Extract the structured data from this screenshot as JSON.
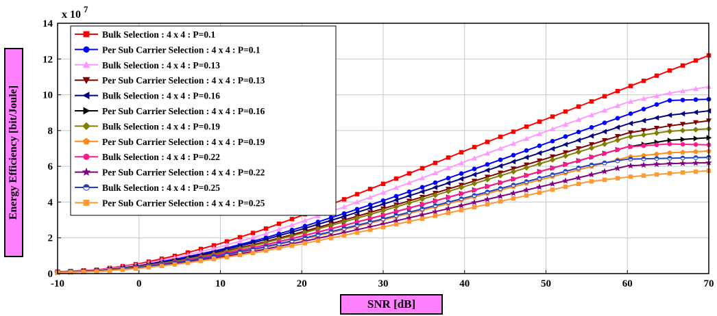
{
  "chart_data": {
    "type": "line",
    "title": "",
    "xlabel": "SNR [dB]",
    "ylabel": "Energy Efficiency [bit/Joule]",
    "y_multiplier_base": "x 10",
    "y_multiplier_exp": "7",
    "xlim": [
      -10,
      70
    ],
    "ylim": [
      0,
      14
    ],
    "xticks": [
      "-10",
      "0",
      "10",
      "20",
      "30",
      "40",
      "50",
      "60",
      "70"
    ],
    "yticks": [
      "0",
      "2",
      "4",
      "6",
      "8",
      "10",
      "12",
      "14"
    ],
    "grid": true,
    "legend_position": "top-left",
    "x": [
      -10,
      -5,
      0,
      5,
      10,
      15,
      20,
      25,
      30,
      35,
      40,
      45,
      50,
      55,
      60,
      65,
      70
    ],
    "series": [
      {
        "name": "Bulk Selection : 4 x 4 : P=0.1",
        "color": "#ff0000",
        "marker": "square",
        "values": [
          0.1,
          0.22,
          0.55,
          1.05,
          1.68,
          2.42,
          3.25,
          4.12,
          5.02,
          5.93,
          6.86,
          7.76,
          8.64,
          9.52,
          10.42,
          11.32,
          12.2
        ]
      },
      {
        "name": "Per Sub Carrier Selection : 4 x 4 : P=0.1",
        "color": "#0000ff",
        "marker": "circle",
        "values": [
          0.08,
          0.18,
          0.45,
          0.85,
          1.34,
          1.93,
          2.6,
          3.33,
          4.08,
          4.86,
          5.66,
          6.46,
          7.28,
          8.08,
          8.88,
          9.68,
          9.75
        ]
      },
      {
        "name": "Bulk Selection : 4 x 4 : P=0.13",
        "color": "#ff99ff",
        "marker": "triangle-up",
        "values": [
          0.09,
          0.2,
          0.5,
          0.94,
          1.5,
          2.15,
          2.9,
          3.7,
          4.53,
          5.38,
          6.25,
          7.1,
          7.95,
          8.77,
          9.58,
          10.08,
          10.45
        ]
      },
      {
        "name": "Per Sub Carrier Selection : 4 x 4 : P=0.13",
        "color": "#800000",
        "marker": "triangle-down",
        "values": [
          0.08,
          0.16,
          0.4,
          0.76,
          1.2,
          1.72,
          2.32,
          2.97,
          3.63,
          4.31,
          5.01,
          5.72,
          6.43,
          7.14,
          7.85,
          8.25,
          8.55
        ]
      },
      {
        "name": "Bulk Selection : 4 x 4 : P=0.16",
        "color": "#000080",
        "marker": "triangle-left",
        "values": [
          0.08,
          0.17,
          0.43,
          0.8,
          1.28,
          1.84,
          2.48,
          3.17,
          3.88,
          4.61,
          5.36,
          6.11,
          6.86,
          7.61,
          8.36,
          8.85,
          9.1
        ]
      },
      {
        "name": "Per Sub Carrier Selection : 4 x 4 : P=0.16",
        "color": "#000000",
        "marker": "triangle-right",
        "values": [
          0.07,
          0.15,
          0.36,
          0.68,
          1.08,
          1.55,
          2.09,
          2.67,
          3.27,
          3.89,
          4.52,
          5.16,
          5.8,
          6.44,
          7.08,
          7.45,
          7.6
        ]
      },
      {
        "name": "Bulk Selection : 4 x 4 : P=0.19",
        "color": "#808000",
        "marker": "diamond",
        "values": [
          0.08,
          0.16,
          0.39,
          0.73,
          1.16,
          1.67,
          2.25,
          2.87,
          3.52,
          4.19,
          4.87,
          5.56,
          6.25,
          6.94,
          7.63,
          7.95,
          8.1
        ]
      },
      {
        "name": "Per Sub Carrier Selection : 4 x 4 : P=0.19",
        "color": "#ff8c1a",
        "marker": "pentagon",
        "values": [
          0.07,
          0.14,
          0.33,
          0.62,
          0.99,
          1.42,
          1.91,
          2.45,
          3.0,
          3.57,
          4.15,
          4.74,
          5.33,
          5.92,
          6.51,
          6.75,
          6.85
        ]
      },
      {
        "name": "Bulk Selection : 4 x 4 : P=0.22",
        "color": "#ff1a8c",
        "marker": "circle",
        "values": [
          0.07,
          0.15,
          0.36,
          0.68,
          1.08,
          1.55,
          2.09,
          2.67,
          3.27,
          3.89,
          4.52,
          5.16,
          5.8,
          6.44,
          7.08,
          7.25,
          7.2
        ]
      },
      {
        "name": "Per Sub Carrier Selection : 4 x 4 : P=0.22",
        "color": "#800080",
        "marker": "star",
        "values": [
          0.06,
          0.13,
          0.31,
          0.58,
          0.92,
          1.32,
          1.78,
          2.27,
          2.78,
          3.31,
          3.85,
          4.39,
          4.93,
          5.47,
          6.02,
          6.15,
          6.2
        ]
      },
      {
        "name": "Bulk Selection : 4 x 4 : P=0.25",
        "color": "#2040c0",
        "marker": "circle-half",
        "values": [
          0.07,
          0.14,
          0.34,
          0.64,
          1.01,
          1.45,
          1.95,
          2.5,
          3.06,
          3.64,
          4.23,
          4.83,
          5.43,
          6.03,
          6.4,
          6.45,
          6.5
        ]
      },
      {
        "name": "Per Sub Carrier Selection : 4 x 4 : P=0.25",
        "color": "#ff9933",
        "marker": "square",
        "values": [
          0.06,
          0.12,
          0.29,
          0.54,
          0.86,
          1.23,
          1.66,
          2.12,
          2.6,
          3.09,
          3.59,
          4.1,
          4.61,
          5.12,
          5.4,
          5.6,
          5.75
        ]
      }
    ]
  }
}
